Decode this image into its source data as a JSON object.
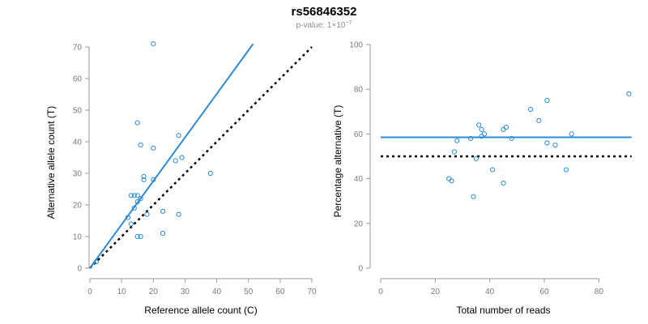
{
  "title": "rs56846352",
  "subtitle": {
    "prefix": "p-value: 1×10",
    "exponent": "−7"
  },
  "colors": {
    "points": "#2b8bd6",
    "fit": "#2b8bd6",
    "reference": "#000000",
    "axis": "#9a9a9a",
    "tick_text": "#7a7a7a"
  },
  "chart_data": [
    {
      "type": "scatter",
      "xlabel": "Reference allele count (C)",
      "ylabel": "Alternative allele count (T)",
      "xlim": [
        0,
        70
      ],
      "ylim": [
        0,
        70
      ],
      "xticks": [
        "0",
        "10",
        "20",
        "30",
        "40",
        "50",
        "60",
        "70"
      ],
      "yticks": [
        "0",
        "10",
        "20",
        "30",
        "40",
        "50",
        "60",
        "70"
      ],
      "points": [
        {
          "x": 20,
          "y": 71
        },
        {
          "x": 15,
          "y": 46
        },
        {
          "x": 28,
          "y": 42
        },
        {
          "x": 16,
          "y": 39
        },
        {
          "x": 20,
          "y": 38
        },
        {
          "x": 29,
          "y": 35
        },
        {
          "x": 27,
          "y": 34
        },
        {
          "x": 38,
          "y": 30
        },
        {
          "x": 17,
          "y": 29
        },
        {
          "x": 17,
          "y": 28
        },
        {
          "x": 20,
          "y": 28
        },
        {
          "x": 13,
          "y": 23
        },
        {
          "x": 14,
          "y": 23
        },
        {
          "x": 15,
          "y": 23
        },
        {
          "x": 16,
          "y": 22
        },
        {
          "x": 15,
          "y": 21
        },
        {
          "x": 14,
          "y": 19
        },
        {
          "x": 23,
          "y": 18
        },
        {
          "x": 18,
          "y": 17
        },
        {
          "x": 28,
          "y": 17
        },
        {
          "x": 12,
          "y": 16
        },
        {
          "x": 13,
          "y": 14
        },
        {
          "x": 23,
          "y": 11
        },
        {
          "x": 15,
          "y": 10
        },
        {
          "x": 16,
          "y": 10
        },
        {
          "x": 2,
          "y": 2
        }
      ],
      "fit_line": {
        "x": [
          0,
          51.5
        ],
        "y": [
          0,
          71
        ]
      },
      "reference_line": {
        "x": [
          0,
          70
        ],
        "y": [
          0,
          70
        ]
      },
      "grid": false
    },
    {
      "type": "scatter",
      "xlabel": "Total number of reads",
      "ylabel": "Percentage alternative (T)",
      "xlim": [
        0,
        90
      ],
      "ylim": [
        0,
        100
      ],
      "xticks": [
        "0",
        "20",
        "40",
        "60",
        "80"
      ],
      "yticks": [
        "0",
        "20",
        "40",
        "60",
        "80",
        "100"
      ],
      "points": [
        {
          "x": 91,
          "y": 78
        },
        {
          "x": 61,
          "y": 75
        },
        {
          "x": 55,
          "y": 71
        },
        {
          "x": 58,
          "y": 66
        },
        {
          "x": 36,
          "y": 64
        },
        {
          "x": 46,
          "y": 63
        },
        {
          "x": 45,
          "y": 62
        },
        {
          "x": 37,
          "y": 62
        },
        {
          "x": 38,
          "y": 60
        },
        {
          "x": 70,
          "y": 60
        },
        {
          "x": 37,
          "y": 59
        },
        {
          "x": 48,
          "y": 58
        },
        {
          "x": 33,
          "y": 58
        },
        {
          "x": 28,
          "y": 57
        },
        {
          "x": 61,
          "y": 56
        },
        {
          "x": 64,
          "y": 55
        },
        {
          "x": 27,
          "y": 52
        },
        {
          "x": 35,
          "y": 49
        },
        {
          "x": 41,
          "y": 44
        },
        {
          "x": 68,
          "y": 44
        },
        {
          "x": 25,
          "y": 40
        },
        {
          "x": 26,
          "y": 39
        },
        {
          "x": 45,
          "y": 38
        },
        {
          "x": 34,
          "y": 32
        }
      ],
      "fit_line": {
        "x": [
          0,
          92
        ],
        "y": [
          58.5,
          58.5
        ]
      },
      "reference_line": {
        "x": [
          0,
          92
        ],
        "y": [
          50,
          50
        ]
      },
      "grid": false
    }
  ]
}
